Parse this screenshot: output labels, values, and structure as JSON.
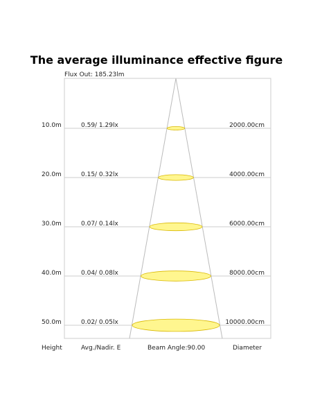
{
  "title": "The average illuminance effective figure",
  "flux_out": "Flux Out: 185.23lm",
  "rows": [
    {
      "height": "10.0m",
      "illuminance": "0.59/ 1.29lx",
      "diameter": "2000.00cm"
    },
    {
      "height": "20.0m",
      "illuminance": "0.15/ 0.32lx",
      "diameter": "4000.00cm"
    },
    {
      "height": "30.0m",
      "illuminance": "0.07/ 0.14lx",
      "diameter": "6000.00cm"
    },
    {
      "height": "40.0m",
      "illuminance": "0.04/ 0.08lx",
      "diameter": "8000.00cm"
    },
    {
      "height": "50.0m",
      "illuminance": "0.02/ 0.05lx",
      "diameter": "10000.00cm"
    }
  ],
  "footer": {
    "height": "Height",
    "illuminance": "Avg./Nadir. E",
    "beam_angle": "Beam Angle:90.00",
    "diameter": "Diameter"
  }
}
